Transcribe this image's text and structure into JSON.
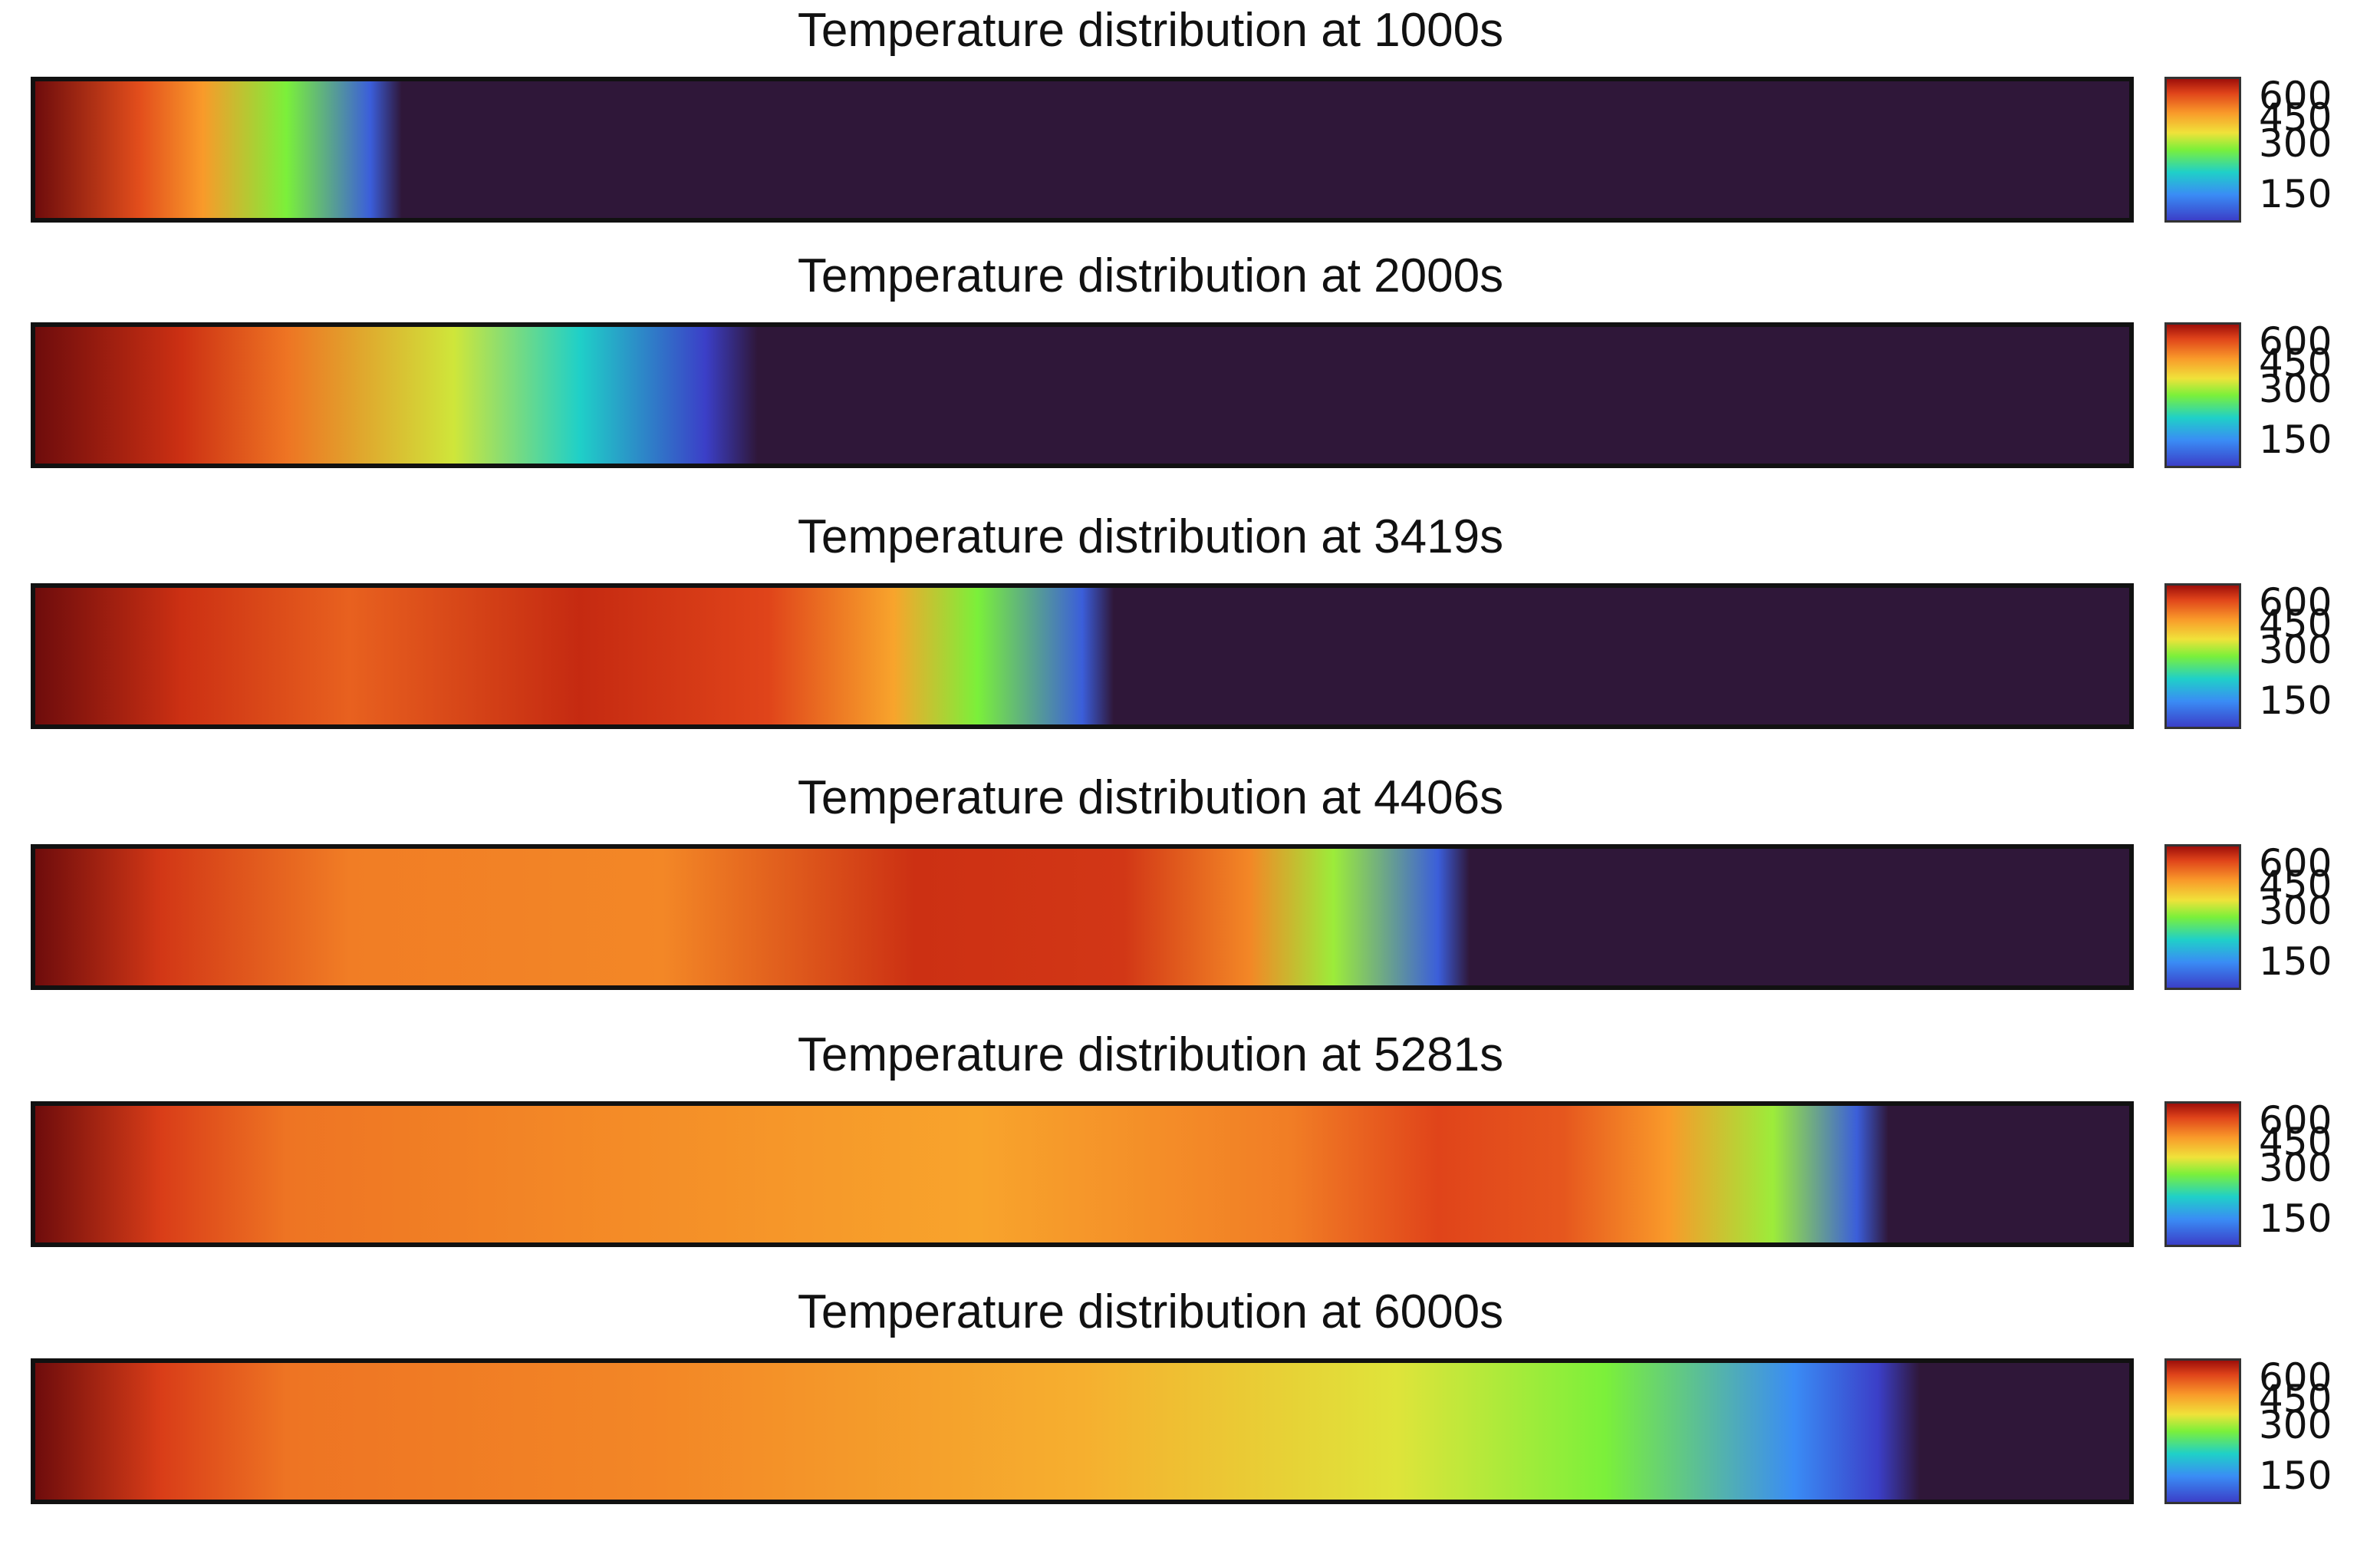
{
  "chart_data": {
    "type": "heatmap",
    "colorbar_ticks": [
      "600",
      "450",
      "300",
      "150"
    ],
    "colorbar_range": [
      150,
      600
    ],
    "panels": [
      {
        "title": "Temperature distribution at 1000s",
        "profile": [
          [
            0,
            620
          ],
          [
            0.05,
            520
          ],
          [
            0.08,
            440
          ],
          [
            0.12,
            300
          ],
          [
            0.16,
            170
          ],
          [
            0.175,
            100
          ]
        ]
      },
      {
        "title": "Temperature distribution at 2000s",
        "profile": [
          [
            0,
            620
          ],
          [
            0.07,
            560
          ],
          [
            0.12,
            480
          ],
          [
            0.2,
            350
          ],
          [
            0.26,
            250
          ],
          [
            0.32,
            150
          ],
          [
            0.345,
            100
          ]
        ]
      },
      {
        "title": "Temperature distribution at 3419s",
        "profile": [
          [
            0,
            620
          ],
          [
            0.07,
            560
          ],
          [
            0.15,
            500
          ],
          [
            0.26,
            570
          ],
          [
            0.35,
            530
          ],
          [
            0.41,
            430
          ],
          [
            0.45,
            300
          ],
          [
            0.5,
            170
          ],
          [
            0.515,
            100
          ]
        ]
      },
      {
        "title": "Temperature distribution at 4406s",
        "profile": [
          [
            0,
            620
          ],
          [
            0.06,
            550
          ],
          [
            0.15,
            470
          ],
          [
            0.3,
            460
          ],
          [
            0.42,
            560
          ],
          [
            0.52,
            550
          ],
          [
            0.58,
            460
          ],
          [
            0.62,
            320
          ],
          [
            0.67,
            170
          ],
          [
            0.685,
            100
          ]
        ]
      },
      {
        "title": "Temperature distribution at 5281s",
        "profile": [
          [
            0,
            620
          ],
          [
            0.06,
            540
          ],
          [
            0.12,
            480
          ],
          [
            0.25,
            460
          ],
          [
            0.45,
            430
          ],
          [
            0.6,
            470
          ],
          [
            0.67,
            530
          ],
          [
            0.73,
            510
          ],
          [
            0.78,
            440
          ],
          [
            0.83,
            320
          ],
          [
            0.87,
            170
          ],
          [
            0.885,
            100
          ]
        ]
      },
      {
        "title": "Temperature distribution at 6000s",
        "profile": [
          [
            0,
            620
          ],
          [
            0.06,
            540
          ],
          [
            0.12,
            480
          ],
          [
            0.3,
            460
          ],
          [
            0.5,
            420
          ],
          [
            0.65,
            360
          ],
          [
            0.75,
            300
          ],
          [
            0.84,
            200
          ],
          [
            0.88,
            150
          ],
          [
            0.9,
            100
          ]
        ]
      }
    ]
  }
}
